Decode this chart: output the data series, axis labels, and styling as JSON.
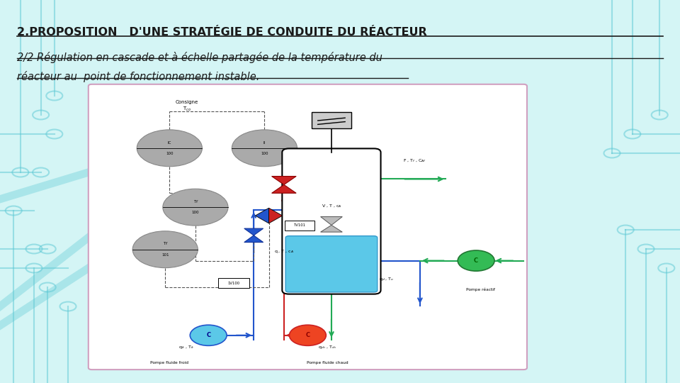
{
  "bg_color": "#d4f5f5",
  "title1": "2.PROPOSITION   D'UNE STRATÉGIE DE CONDUITE DU RÉACTEUR",
  "title2": "2/2 Régulation en cascade et à échelle partagée de la température du",
  "title3": "réacteur au  point de fonctionnement instable.",
  "diagram_bg": "#ffffff",
  "diagram_border": "#d0a0c0",
  "circuit_color": "#5bc8d4",
  "dash_color": "#555555",
  "blue": "#2255cc",
  "red": "#cc2222",
  "green": "#22aa55"
}
